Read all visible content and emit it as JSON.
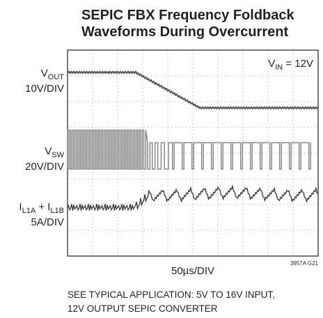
{
  "header": {
    "title": [
      "SEPIC FBX Frequency Foldback",
      "Waveforms During Overcurrent"
    ]
  },
  "traces": [
    {
      "label": [
        {
          "text": "V",
          "sub": "OUT"
        }
      ],
      "scale": "10V/DIV"
    },
    {
      "label": [
        {
          "text": "V",
          "sub": "SW"
        }
      ],
      "scale": "20V/DIV"
    },
    {
      "label": [
        {
          "text": "I",
          "sub": "L1A"
        },
        {
          "text": " + I",
          "sub": "L1B"
        }
      ],
      "scale": "5A/DIV"
    }
  ],
  "condition": {
    "text": "V",
    "sub": "IN",
    "rest": " = 12V"
  },
  "timebase": "50µs/DIV",
  "figure_id": "3957A G21",
  "note": [
    "SEE TYPICAL APPLICATION: 5V TO 16V INPUT,",
    "12V OUTPUT SEPIC CONVERTER"
  ]
}
